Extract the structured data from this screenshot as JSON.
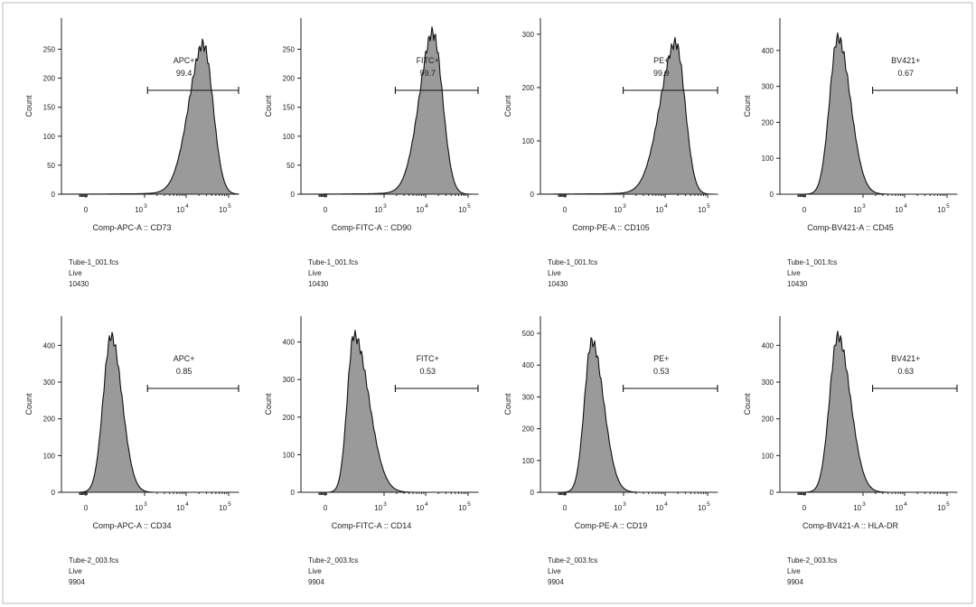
{
  "figure": {
    "frame_color": "#bbbbbb",
    "fill_color": "#9a9a9a",
    "line_color": "#111111"
  },
  "chart_data": [
    {
      "type": "histogram",
      "xlabel": "Comp-APC-A :: CD73",
      "ylabel": "Count",
      "yticks": [
        "0",
        "50",
        "100",
        "150",
        "200",
        "250"
      ],
      "ymax": 285,
      "peak": 4.3,
      "peak_count": 255,
      "left_width": 0.45,
      "right_width": 0.28,
      "left_tail": true,
      "gate": {
        "name": "APC+",
        "value": "99.4",
        "start": 2.6
      },
      "file": "Tube-1_001.fcs",
      "population": "Live",
      "events": "10430"
    },
    {
      "type": "histogram",
      "xlabel": "Comp-FITC-A :: CD90",
      "ylabel": "Count",
      "yticks": [
        "0",
        "50",
        "100",
        "150",
        "200",
        "250"
      ],
      "ymax": 285,
      "peak": 4.0,
      "peak_count": 275,
      "left_width": 0.42,
      "right_width": 0.28,
      "left_tail": true,
      "gate": {
        "name": "FITC+",
        "value": "99.7",
        "start": 2.85
      },
      "file": "Tube-1_001.fcs",
      "population": "Live",
      "events": "10430"
    },
    {
      "type": "histogram",
      "xlabel": "Comp-PE-A :: CD105",
      "ylabel": "Count",
      "yticks": [
        "0",
        "100",
        "200",
        "300"
      ],
      "ymax": 310,
      "peak": 4.1,
      "peak_count": 280,
      "left_width": 0.48,
      "right_width": 0.27,
      "left_tail": true,
      "gate": {
        "name": "PE+",
        "value": "99.9",
        "start": 2.5
      },
      "file": "Tube-1_001.fcs",
      "population": "Live",
      "events": "10430"
    },
    {
      "type": "histogram",
      "xlabel": "Comp-BV421-A :: CD45",
      "ylabel": "Count",
      "yticks": [
        "0",
        "100",
        "200",
        "300",
        "400"
      ],
      "ymax": 460,
      "peak": 1.75,
      "peak_count": 435,
      "left_width": 0.25,
      "right_width": 0.38,
      "left_tail": false,
      "gate": {
        "name": "BV421+",
        "value": "0.67",
        "start": 2.8
      },
      "file": "Tube-1_001.fcs",
      "population": "Live",
      "events": "10430"
    },
    {
      "type": "histogram",
      "xlabel": "Comp-APC-A :: CD34",
      "ylabel": "Count",
      "yticks": [
        "0",
        "100",
        "200",
        "300",
        "400"
      ],
      "ymax": 450,
      "peak": 1.5,
      "peak_count": 425,
      "left_width": 0.24,
      "right_width": 0.33,
      "left_tail": false,
      "gate": {
        "name": "APC+",
        "value": "0.85",
        "start": 2.6
      },
      "file": "Tube-2_003.fcs",
      "population": "Live",
      "events": "9904"
    },
    {
      "type": "histogram",
      "xlabel": "Comp-FITC-A :: CD14",
      "ylabel": "Count",
      "yticks": [
        "0",
        "100",
        "200",
        "300",
        "400"
      ],
      "ymax": 440,
      "peak": 1.6,
      "peak_count": 418,
      "left_width": 0.2,
      "right_width": 0.45,
      "left_tail": false,
      "gate": {
        "name": "FITC+",
        "value": "0.53",
        "start": 2.85
      },
      "file": "Tube-2_003.fcs",
      "population": "Live",
      "events": "9904"
    },
    {
      "type": "histogram",
      "xlabel": "Comp-PE-A :: CD19",
      "ylabel": "Count",
      "yticks": [
        "0",
        "100",
        "200",
        "300",
        "400",
        "500"
      ],
      "ymax": 520,
      "peak": 1.55,
      "peak_count": 475,
      "left_width": 0.22,
      "right_width": 0.36,
      "left_tail": false,
      "gate": {
        "name": "PE+",
        "value": "0.53",
        "start": 2.5
      },
      "file": "Tube-2_003.fcs",
      "population": "Live",
      "events": "9904"
    },
    {
      "type": "histogram",
      "xlabel": "Comp-BV421-A :: HLA-DR",
      "ylabel": "Count",
      "yticks": [
        "0",
        "100",
        "200",
        "300",
        "400"
      ],
      "ymax": 450,
      "peak": 1.75,
      "peak_count": 425,
      "left_width": 0.25,
      "right_width": 0.38,
      "left_tail": false,
      "gate": {
        "name": "BV421+",
        "value": "0.63",
        "start": 2.8
      },
      "file": "Tube-2_003.fcs",
      "population": "Live",
      "events": "9904"
    }
  ],
  "x_axis": {
    "zero_label": "0",
    "log_ticks": [
      {
        "base": "10",
        "exp": "3"
      },
      {
        "base": "10",
        "exp": "4"
      },
      {
        "base": "10",
        "exp": "5"
      }
    ]
  }
}
